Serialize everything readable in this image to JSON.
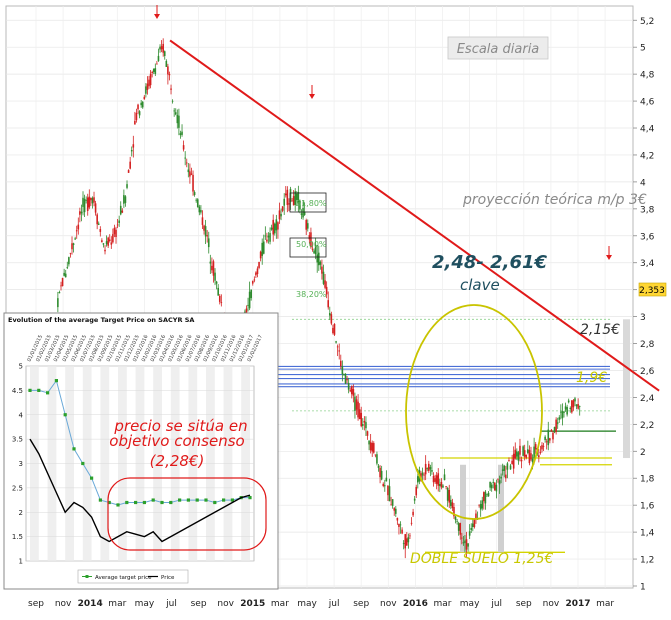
{
  "chart_data": {
    "type": "line",
    "title": "",
    "ylabel": "",
    "xlabel": "",
    "ylim": [
      1,
      5.2
    ],
    "y_ticks": [
      1,
      1.2,
      1.4,
      1.6,
      1.8,
      2,
      2.2,
      2.4,
      2.6,
      2.8,
      3,
      3.2,
      3.4,
      3.6,
      3.8,
      4,
      4.2,
      4.4,
      4.6,
      4.8,
      5,
      5.2
    ],
    "y_tick_labels": [
      "1",
      "1,2",
      "1,4",
      "1,6",
      "1,8",
      "2",
      "2,2",
      "2,4",
      "2,6",
      "2,8",
      "3",
      "3,2",
      "3,4",
      "3,6",
      "3,8",
      "4",
      "4,2",
      "4,4",
      "4,6",
      "4,8",
      "5",
      "5,2"
    ],
    "x_tick_labels": [
      "sep",
      "nov",
      "2014",
      "mar",
      "may",
      "jul",
      "sep",
      "nov",
      "2015",
      "mar",
      "may",
      "jul",
      "sep",
      "nov",
      "2016",
      "mar",
      "may",
      "jul",
      "sep",
      "nov",
      "2017",
      "mar"
    ],
    "series": [
      {
        "price_series": true,
        "x": [
          0,
          0.4,
          0.8,
          1.2,
          1.6,
          2,
          2.4,
          2.8,
          3.2,
          3.6,
          4,
          4.4,
          4.8,
          5,
          5.4,
          5.8,
          6.2,
          6.6,
          7,
          7.4,
          7.8,
          8,
          8.4,
          8.8,
          9.2,
          9.6,
          10,
          10.4,
          10.8,
          11.2,
          11.6,
          12,
          12.4,
          12.8,
          13,
          13.4,
          13.8,
          14,
          14.4,
          14.8,
          15,
          15.4,
          15.8,
          16.2,
          16.6,
          17,
          17.4,
          17.8,
          18.2,
          18.6,
          19,
          19.4,
          19.8,
          20,
          20.4
        ],
        "y": [
          2.6,
          2.8,
          2.7,
          3.2,
          3.5,
          3.8,
          3.9,
          3.5,
          3.6,
          3.9,
          4.5,
          4.7,
          4.9,
          5.0,
          4.6,
          4.2,
          3.9,
          3.6,
          3.2,
          2.9,
          2.7,
          3.0,
          3.3,
          3.6,
          3.7,
          3.9,
          3.85,
          3.6,
          3.4,
          3.0,
          2.6,
          2.4,
          2.2,
          2.0,
          1.85,
          1.65,
          1.4,
          1.3,
          1.8,
          1.9,
          1.8,
          1.75,
          1.5,
          1.3,
          1.55,
          1.7,
          1.8,
          1.9,
          2.0,
          1.95,
          2.05,
          2.15,
          2.3,
          2.36,
          2.353
        ]
      }
    ],
    "last_price": "2,353",
    "lines": {
      "downtrend_red": {
        "from": [
          4.8,
          5.05
        ],
        "to": [
          21,
          2.45
        ]
      },
      "levels": [
        2.48,
        2.61,
        2.15,
        1.9,
        1.25,
        2.98
      ]
    },
    "fibo_labels": [
      "61,80%",
      "50,00%",
      "38,20%"
    ],
    "annotations": {
      "escala": "Escala diaria",
      "proyeccion": "proyección teórica m/p 3€",
      "rango": "2,48- 2,61€",
      "clave": "clave",
      "label_215": "2,15€",
      "label_19": "1,9€",
      "doble_suelo": "DOBLE SUELO 1,25€"
    },
    "inset": {
      "title": "Evolution of the average Target Price on SACYR SA",
      "dates": [
        "01/01/2015",
        "01/02/2015",
        "01/03/2015",
        "01/04/2015",
        "01/05/2015",
        "01/06/2015",
        "01/07/2015",
        "01/08/2015",
        "01/09/2015",
        "01/10/2015",
        "01/11/2015",
        "01/12/2015",
        "01/01/2016",
        "01/02/2016",
        "01/03/2016",
        "01/04/2016",
        "01/05/2016",
        "01/06/2016",
        "01/07/2016",
        "01/08/2016",
        "01/09/2016",
        "01/10/2016",
        "01/11/2016",
        "01/12/2016",
        "01/01/2017",
        "01/02/2017"
      ],
      "ylim": [
        1,
        5
      ],
      "y_ticks": [
        "1",
        "1.5",
        "2",
        "2.5",
        "3",
        "3.5",
        "4",
        "4.5",
        "5"
      ],
      "series": [
        {
          "name": "Average target price",
          "color": "#2ca02c",
          "values": [
            4.5,
            4.5,
            4.45,
            4.7,
            4.0,
            3.3,
            3.0,
            2.7,
            2.25,
            2.2,
            2.15,
            2.2,
            2.2,
            2.2,
            2.25,
            2.2,
            2.2,
            2.25,
            2.25,
            2.25,
            2.25,
            2.2,
            2.25,
            2.25,
            2.3,
            2.3
          ]
        },
        {
          "name": "Price",
          "color": "#000000",
          "values": [
            3.5,
            3.2,
            2.8,
            2.4,
            2.0,
            2.2,
            2.1,
            1.9,
            1.5,
            1.4,
            1.5,
            1.6,
            1.55,
            1.5,
            1.6,
            1.4,
            1.5,
            1.6,
            1.7,
            1.8,
            1.9,
            2.0,
            2.1,
            2.2,
            2.3,
            2.35
          ]
        }
      ],
      "annotation": [
        "precio se sitúa en",
        "objetivo consenso",
        "(2,28€)"
      ]
    }
  }
}
